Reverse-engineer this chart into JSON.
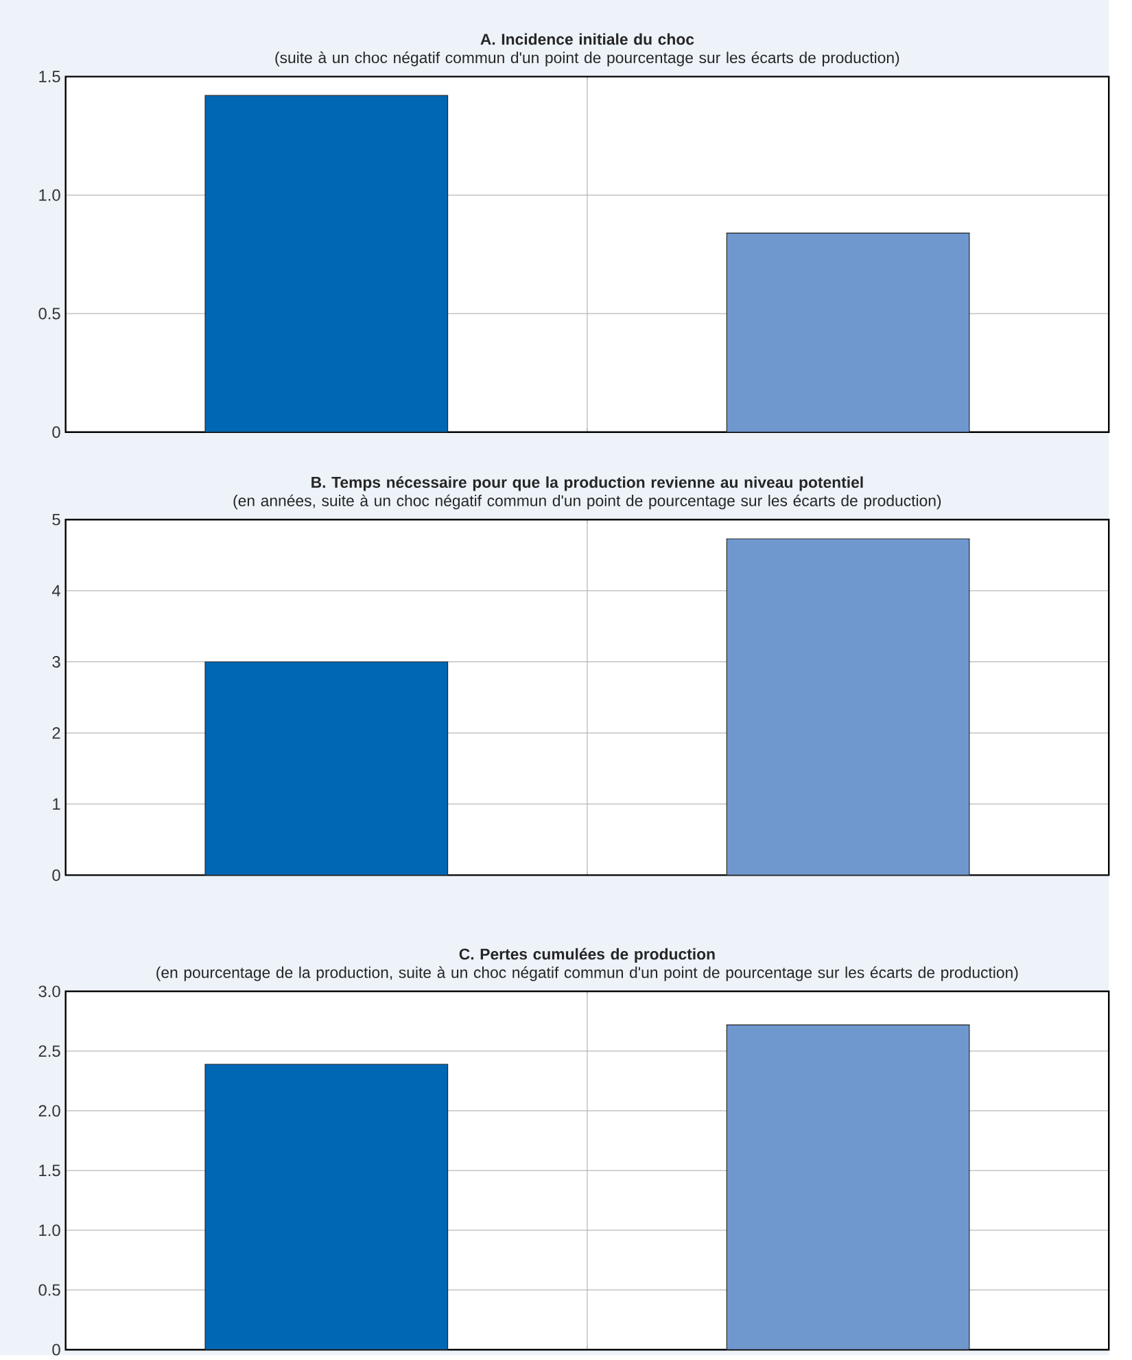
{
  "chart_data": [
    {
      "type": "bar",
      "title": "A. Incidence initiale du choc",
      "subtitle": "(suite à un choc négatif commun d'un point de pourcentage sur les écarts de production)",
      "categories": [
        null,
        null
      ],
      "values": [
        1.42,
        0.84
      ],
      "colors": [
        "#0067b4",
        "#6f98cf"
      ],
      "ylim": [
        0,
        1.5
      ],
      "yticks": [
        0,
        0.5,
        {
          "value": 1,
          "label": "1.0"
        },
        1.5
      ],
      "grid": true,
      "tick_labels": "y"
    },
    {
      "type": "bar",
      "title": "B. Temps nécessaire pour que la production revienne au niveau potentiel",
      "subtitle": "(en années, suite à un choc négatif commun d'un point de pourcentage sur les écarts de production)",
      "categories": [
        null,
        null
      ],
      "values": [
        3.0,
        4.73
      ],
      "colors": [
        "#0067b4",
        "#6f98cf"
      ],
      "ylim": [
        0,
        5
      ],
      "yticks": [
        0,
        1,
        2,
        3,
        4,
        5
      ],
      "grid": true,
      "tick_labels": "y"
    },
    {
      "type": "bar",
      "title": "C. Pertes cumulées de production",
      "subtitle": "(en pourcentage de la production, suite à un choc négatif commun d'un point de pourcentage sur les écarts de production)",
      "categories": [
        null,
        null
      ],
      "values": [
        2.39,
        2.72
      ],
      "colors": [
        "#0067b4",
        "#6f98cf"
      ],
      "ylim": [
        0,
        3
      ],
      "yticks": [
        0,
        0.5,
        {
          "value": 1,
          "label": "1.0"
        },
        1.5,
        {
          "value": 2,
          "label": "2.0"
        },
        2.5,
        {
          "value": 3,
          "label": "3.0"
        }
      ],
      "grid": true,
      "tick_labels": "y"
    }
  ]
}
